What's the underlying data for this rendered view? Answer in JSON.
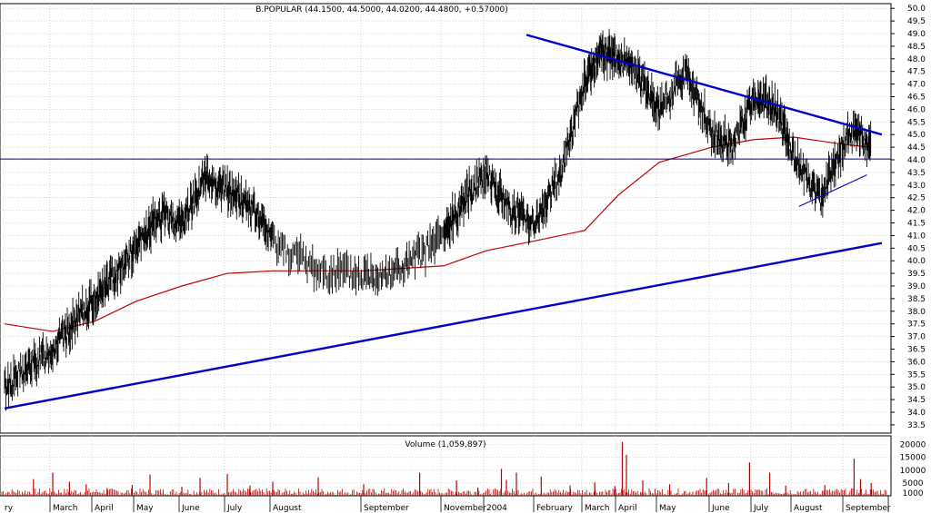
{
  "chart_data": {
    "type": "line",
    "title": "B.POPULAR (44.1500, 44.5000, 44.0200, 44.4800, +0.57000)",
    "symbol": "B.POPULAR",
    "ohlc_last": {
      "open": 44.15,
      "high": 44.5,
      "low": 44.02,
      "close": 44.48,
      "change": 0.57
    },
    "grid": true,
    "price_axis": {
      "min": 33.5,
      "max": 50.0,
      "step": 0.5,
      "side": "right",
      "ticks": [
        "50.0",
        "49.5",
        "49.0",
        "48.5",
        "48.0",
        "47.5",
        "47.0",
        "46.5",
        "46.0",
        "45.5",
        "45.0",
        "44.5",
        "44.0",
        "43.5",
        "43.0",
        "42.5",
        "42.0",
        "41.5",
        "41.0",
        "40.5",
        "40.0",
        "39.5",
        "39.0",
        "38.5",
        "38.0",
        "37.5",
        "37.0",
        "36.5",
        "36.0",
        "35.5",
        "35.0",
        "34.5",
        "34.0",
        "33.5"
      ]
    },
    "time_axis": {
      "labels": [
        "ry",
        "March",
        "April",
        "May",
        "June",
        "July",
        "August",
        "September",
        "November",
        "2004",
        "February",
        "March",
        "April",
        "May",
        "June",
        "July",
        "August",
        "September"
      ]
    },
    "price_series": {
      "name": "",
      "color": "#000000",
      "x": [
        0,
        1,
        2,
        3,
        3.5,
        4,
        4.5,
        5,
        5.5,
        6,
        6.5,
        7,
        7.5,
        8,
        8.5,
        9,
        9.2,
        9.5,
        10,
        10.5,
        11,
        11.5,
        12,
        12.5,
        13,
        13.5,
        14,
        14.5,
        15,
        15.5,
        16,
        16.5,
        17,
        17.3,
        17.6
      ],
      "y": [
        35.0,
        36.5,
        38.5,
        40.5,
        41.8,
        41.5,
        43.3,
        42.8,
        42.2,
        40.8,
        39.6,
        39.4,
        39.7,
        41.0,
        42.5,
        43.6,
        42.8,
        42.0,
        41.5,
        43.5,
        47.0,
        48.3,
        48.0,
        47.3,
        46.0,
        47.5,
        45.0,
        44.5,
        46.5,
        46.2,
        44.2,
        42.5,
        44.8,
        45.1,
        44.6
      ]
    },
    "moving_average": {
      "name": "",
      "color": "#c00000",
      "x": [
        0,
        1,
        2,
        3,
        4,
        5,
        6,
        7,
        8,
        9,
        10,
        11,
        12,
        13,
        14,
        15,
        16,
        17,
        17.6
      ],
      "y": [
        37.5,
        37.2,
        37.6,
        38.4,
        39.0,
        39.5,
        39.6,
        39.6,
        39.8,
        40.4,
        40.8,
        41.2,
        42.6,
        43.9,
        44.5,
        44.8,
        44.9,
        44.6,
        44.5
      ]
    },
    "support_level": {
      "y": 44.03,
      "color": "#00008b"
    },
    "trendlines": [
      {
        "name": "",
        "from": {
          "x": 0,
          "y": 34.15
        },
        "to": {
          "x": 17.85,
          "y": 40.7
        },
        "color": "#0000cc"
      },
      {
        "name": "",
        "from": {
          "x": 9.8,
          "y": 48.95
        },
        "to": {
          "x": 17.85,
          "y": 45.0
        },
        "color": "#0000cc"
      },
      {
        "name": "",
        "from": {
          "x": 16.1,
          "y": 42.15
        },
        "to": {
          "x": 17.5,
          "y": 43.4
        },
        "color": "#0000cc"
      }
    ],
    "volume": {
      "label": "Volume (1,059,897)",
      "axis_ticks": [
        "20000",
        "15000",
        "10000",
        "5000",
        "1000"
      ],
      "min": 0,
      "max": 22000,
      "color": "#c00000",
      "x": [
        0.6,
        1.0,
        1.4,
        1.8,
        2.3,
        2.9,
        3.3,
        4.0,
        4.4,
        5.0,
        5.5,
        6.0,
        6.5,
        7.0,
        7.7,
        8.3,
        8.8,
        9.3,
        9.4,
        9.6,
        10.1,
        10.7,
        11.3,
        11.9,
        12.1,
        12.2,
        12.6,
        13.2,
        13.9,
        14.4,
        14.9,
        15.4,
        15.8,
        16.6,
        17.2,
        17.35,
        17.6
      ],
      "values": [
        6500,
        9000,
        5500,
        4500,
        3000,
        4200,
        8300,
        3500,
        7000,
        8500,
        4000,
        5500,
        7200,
        4500,
        9000,
        6000,
        3200,
        10500,
        6200,
        9000,
        7500,
        4000,
        5200,
        3800,
        21000,
        16000,
        6000,
        4500,
        7000,
        5000,
        13000,
        9000,
        4000,
        4200,
        14500,
        6500,
        5000
      ]
    }
  }
}
